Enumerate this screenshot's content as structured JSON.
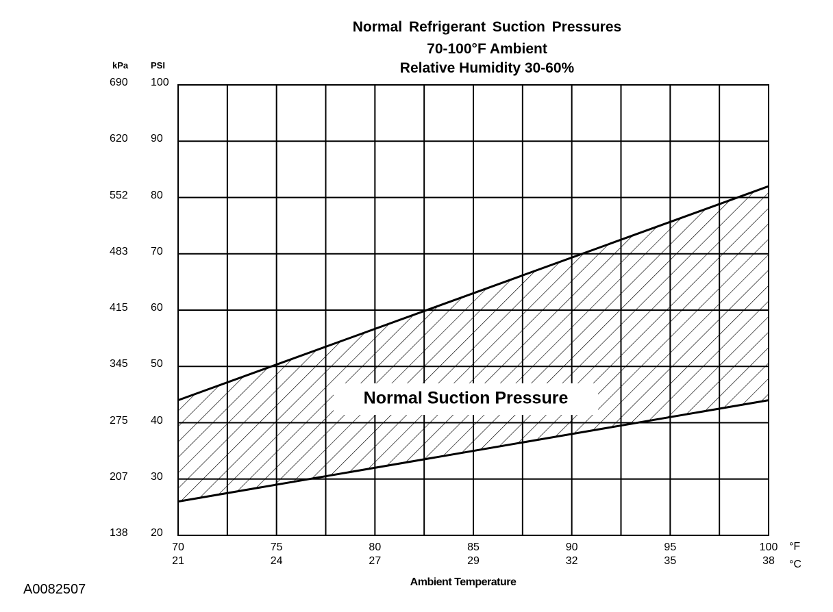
{
  "chart_data": {
    "type": "area",
    "title": "Normal  Refrigerant  Suction  Pressures",
    "subtitle_lines": [
      "70-100°F Ambient",
      "Relative Humidity 30-60%"
    ],
    "xlabel": "Ambient Temperature",
    "x_unit_f": "°F",
    "x_unit_c": "°C",
    "xlim": [
      70,
      100
    ],
    "x_ticks_f": [
      "70",
      "75",
      "80",
      "85",
      "90",
      "95",
      "100"
    ],
    "x_ticks_c": [
      "21",
      "24",
      "27",
      "29",
      "32",
      "35",
      "38"
    ],
    "y_unit_kpa": "kPa",
    "y_unit_psi": "PSI",
    "ylim": [
      20,
      100
    ],
    "y_ticks_psi": [
      "100",
      "90",
      "80",
      "70",
      "60",
      "50",
      "40",
      "30",
      "20"
    ],
    "y_ticks_kpa": [
      "690",
      "620",
      "552",
      "483",
      "415",
      "345",
      "275",
      "207",
      "138"
    ],
    "grid": true,
    "series": [
      {
        "name": "Normal Suction Pressure",
        "x": [
          70,
          100
        ],
        "upper": [
          44,
          82
        ],
        "lower": [
          26,
          44
        ]
      }
    ],
    "band_label": "Normal Suction Pressure",
    "colors": {
      "line": "#000000",
      "hatch": "#000000",
      "background": "#ffffff"
    }
  },
  "figure_id": "A0082507"
}
